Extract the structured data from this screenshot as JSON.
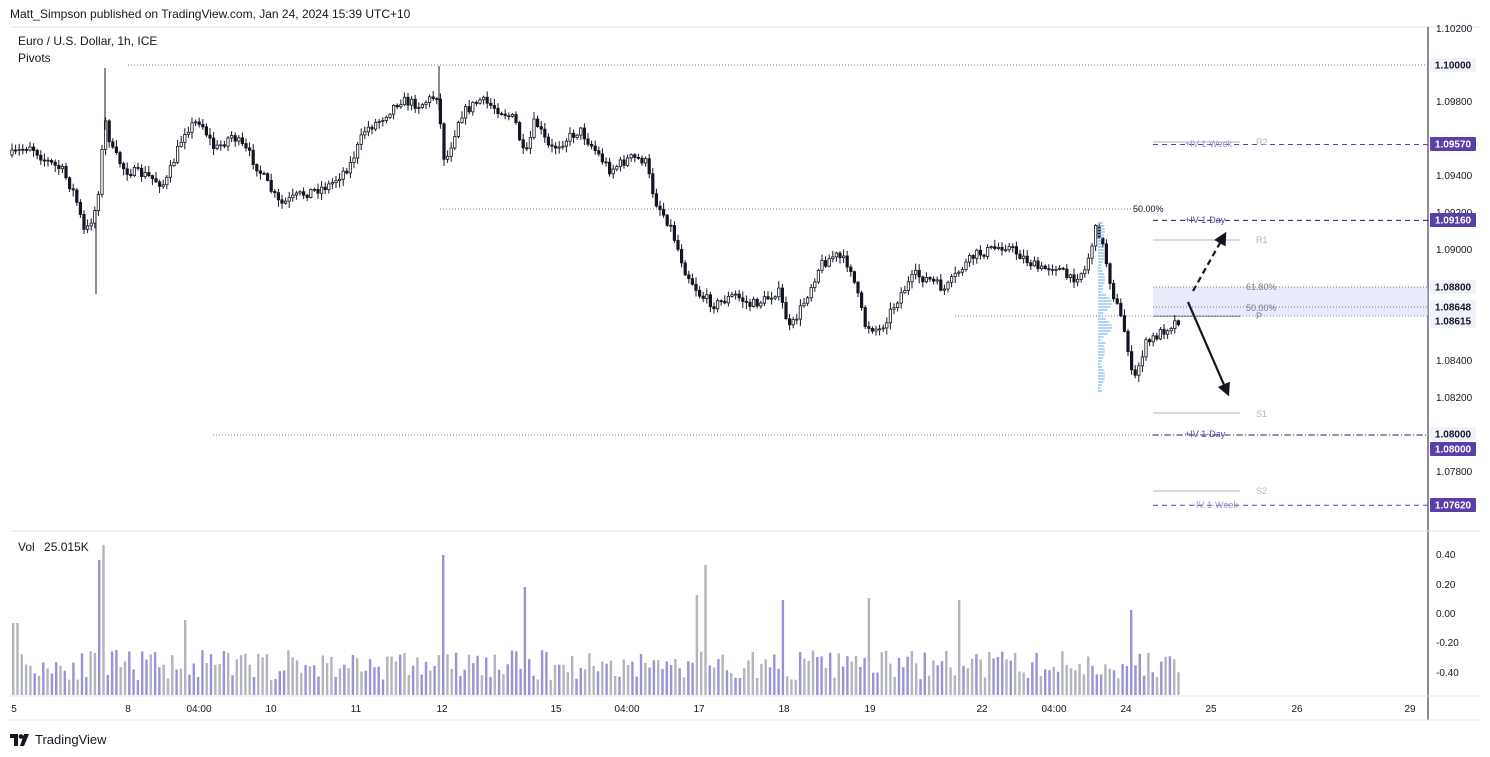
{
  "header": {
    "publisher": "Matt_Simpson published on TradingView.com, Jan 24, 2024 15:39 UTC+10"
  },
  "symbol": {
    "title": "Euro / U.S. Dollar, 1h, ICE",
    "indicator": "Pivots"
  },
  "volume": {
    "label": "Vol",
    "value": "25.015K"
  },
  "footer": {
    "brand": "TradingView"
  },
  "colors": {
    "candle": "#131722",
    "volume_bar_a": "#9a92d6",
    "volume_bar_b": "#b2b5be",
    "tag_purple": "#5a3fa8",
    "tag_light": "#f0f3fa",
    "zone": "#d6dbf5",
    "pivot_text": "#b2b5be"
  },
  "price_axis": {
    "labels": [
      "1.10200",
      "1.09800",
      "1.09400",
      "1.09200",
      "1.09000",
      "1.08400",
      "1.08200",
      "1.07800"
    ]
  },
  "time_axis": {
    "labels": [
      "5",
      "8",
      "04:00",
      "10",
      "11",
      "12",
      "15",
      "04:00",
      "17",
      "18",
      "19",
      "22",
      "04:00",
      "23",
      "24",
      "25",
      "26",
      "29"
    ]
  },
  "volume_axis": {
    "labels": [
      "0.40",
      "0.20",
      "0.00",
      "-0.20",
      "-0.40"
    ]
  },
  "price_tags": [
    {
      "text": "1.10000",
      "style": "light"
    },
    {
      "text": "1.09570",
      "style": "purple"
    },
    {
      "text": "1.09160",
      "style": "purple"
    },
    {
      "text": "1.08800",
      "style": "light"
    },
    {
      "text": "1.08648",
      "style": "light"
    },
    {
      "text": "1.08615",
      "style": "light"
    },
    {
      "text": "1.08000",
      "style": "light"
    },
    {
      "text": "1.08000",
      "style": "purple"
    },
    {
      "text": "1.07620",
      "style": "purple"
    }
  ],
  "annotations": {
    "fib_50_top": "50.00%",
    "fib_618": "61.80%",
    "fib_50": "50.00%",
    "iv_week_up": "+IV 1-Week",
    "iv_day_up": "+IV 1-Day",
    "iv_day_down": "+IV 1-Day",
    "iv_week_down": "-IV 1-Week",
    "r2": "R2",
    "r1": "R1",
    "p": "P",
    "s1": "S1",
    "s2": "S2"
  },
  "chart_data": {
    "type": "line",
    "instrument": "EURUSD",
    "timeframe": "1h",
    "x_labels": [
      "5",
      "8",
      "10",
      "11",
      "12",
      "15",
      "17",
      "18",
      "19",
      "22",
      "23",
      "24"
    ],
    "close_approx": [
      1.095,
      1.093,
      1.0945,
      1.0935,
      1.0975,
      1.096,
      1.087,
      1.0865,
      1.088,
      1.0895,
      1.0905,
      1.086
    ],
    "levels": {
      "round_number": 1.1,
      "iv_week_upper": 1.0957,
      "iv_day_upper": 1.0916,
      "fib_618": 1.088,
      "fib_50": 1.08648,
      "pivot": 1.08615,
      "iv_day_lower": 1.08,
      "iv_week_lower": 1.0762
    },
    "ylim": [
      1.0755,
      1.1025
    ],
    "volume_axis_range": [
      -0.45,
      0.45
    ]
  }
}
